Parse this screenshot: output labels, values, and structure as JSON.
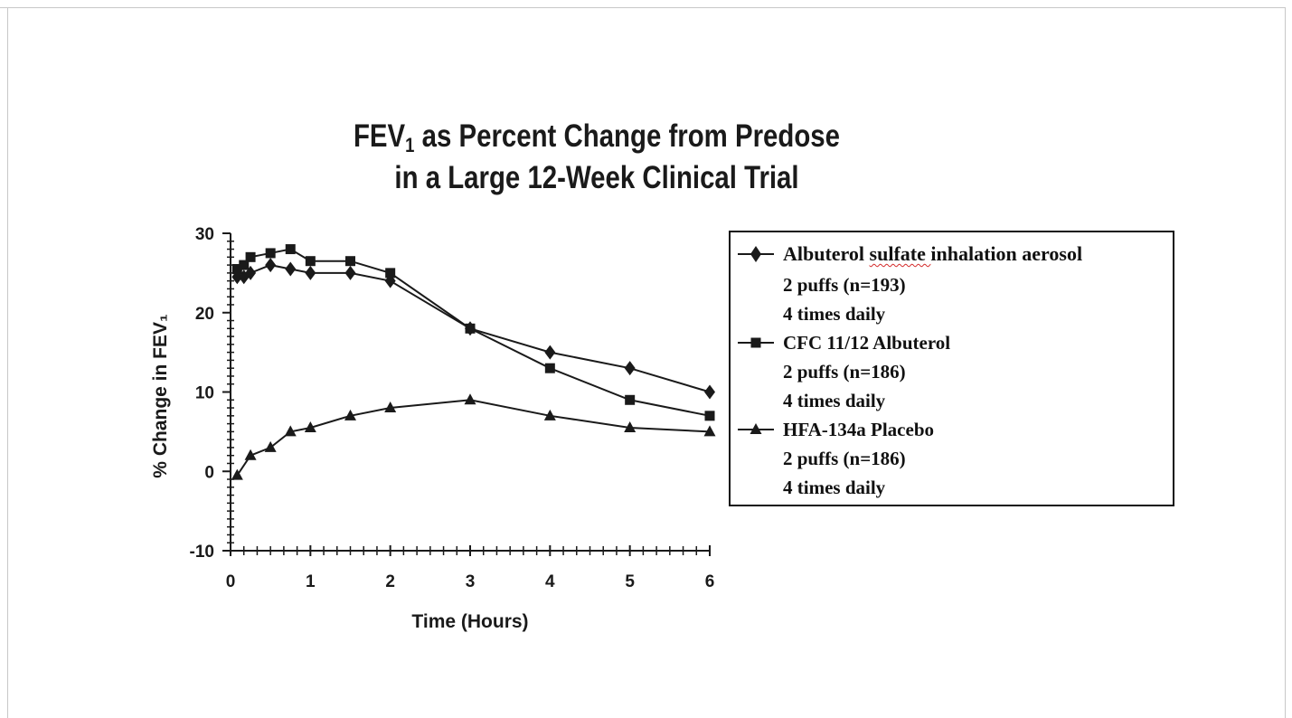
{
  "chart_data": {
    "type": "line",
    "title_line1_prefix": "FEV",
    "title_line1_sub": "1",
    "title_line1_suffix": " as Percent Change from Predose",
    "title_line2": "in a Large 12-Week Clinical Trial",
    "xlabel": "Time (Hours)",
    "ylabel": "% Change in FEV₁",
    "xlim": [
      0,
      6
    ],
    "ylim": [
      -10,
      30
    ],
    "x_ticks": [
      0,
      1,
      2,
      3,
      4,
      5,
      6
    ],
    "y_ticks": [
      -10,
      0,
      10,
      20,
      30
    ],
    "grid": false,
    "legend_position": "right",
    "series": [
      {
        "name": "Albuterol sulfate inhalation aerosol",
        "name_lines": [
          "2 puffs (n=193)",
          "4 times daily"
        ],
        "marker": "diamond",
        "x": [
          0.083,
          0.167,
          0.25,
          0.5,
          0.75,
          1,
          1.5,
          2,
          3,
          4,
          5,
          6
        ],
        "values": [
          24.5,
          24.5,
          25,
          26,
          25.5,
          25,
          25,
          24,
          18,
          15,
          13,
          10
        ]
      },
      {
        "name": "CFC 11/12 Albuterol",
        "name_lines": [
          "2 puffs (n=186)",
          "4 times daily"
        ],
        "marker": "square",
        "x": [
          0.083,
          0.167,
          0.25,
          0.5,
          0.75,
          1,
          1.5,
          2,
          3,
          4,
          5,
          6
        ],
        "values": [
          25.5,
          26,
          27,
          27.5,
          28,
          26.5,
          26.5,
          25,
          18,
          13,
          9,
          7
        ]
      },
      {
        "name": "HFA-134a Placebo",
        "name_lines": [
          "2 puffs (n=186)",
          "4 times daily"
        ],
        "marker": "triangle",
        "x": [
          0.083,
          0.25,
          0.5,
          0.75,
          1,
          1.5,
          2,
          3,
          4,
          5,
          6
        ],
        "values": [
          -0.5,
          2,
          3,
          5,
          5.5,
          7,
          8,
          9,
          7,
          5.5,
          5
        ]
      }
    ],
    "colors": {
      "line": "#1a1a1a",
      "frame": "#c8c8c8",
      "spellcheck_underline": "#d42a2a"
    }
  }
}
